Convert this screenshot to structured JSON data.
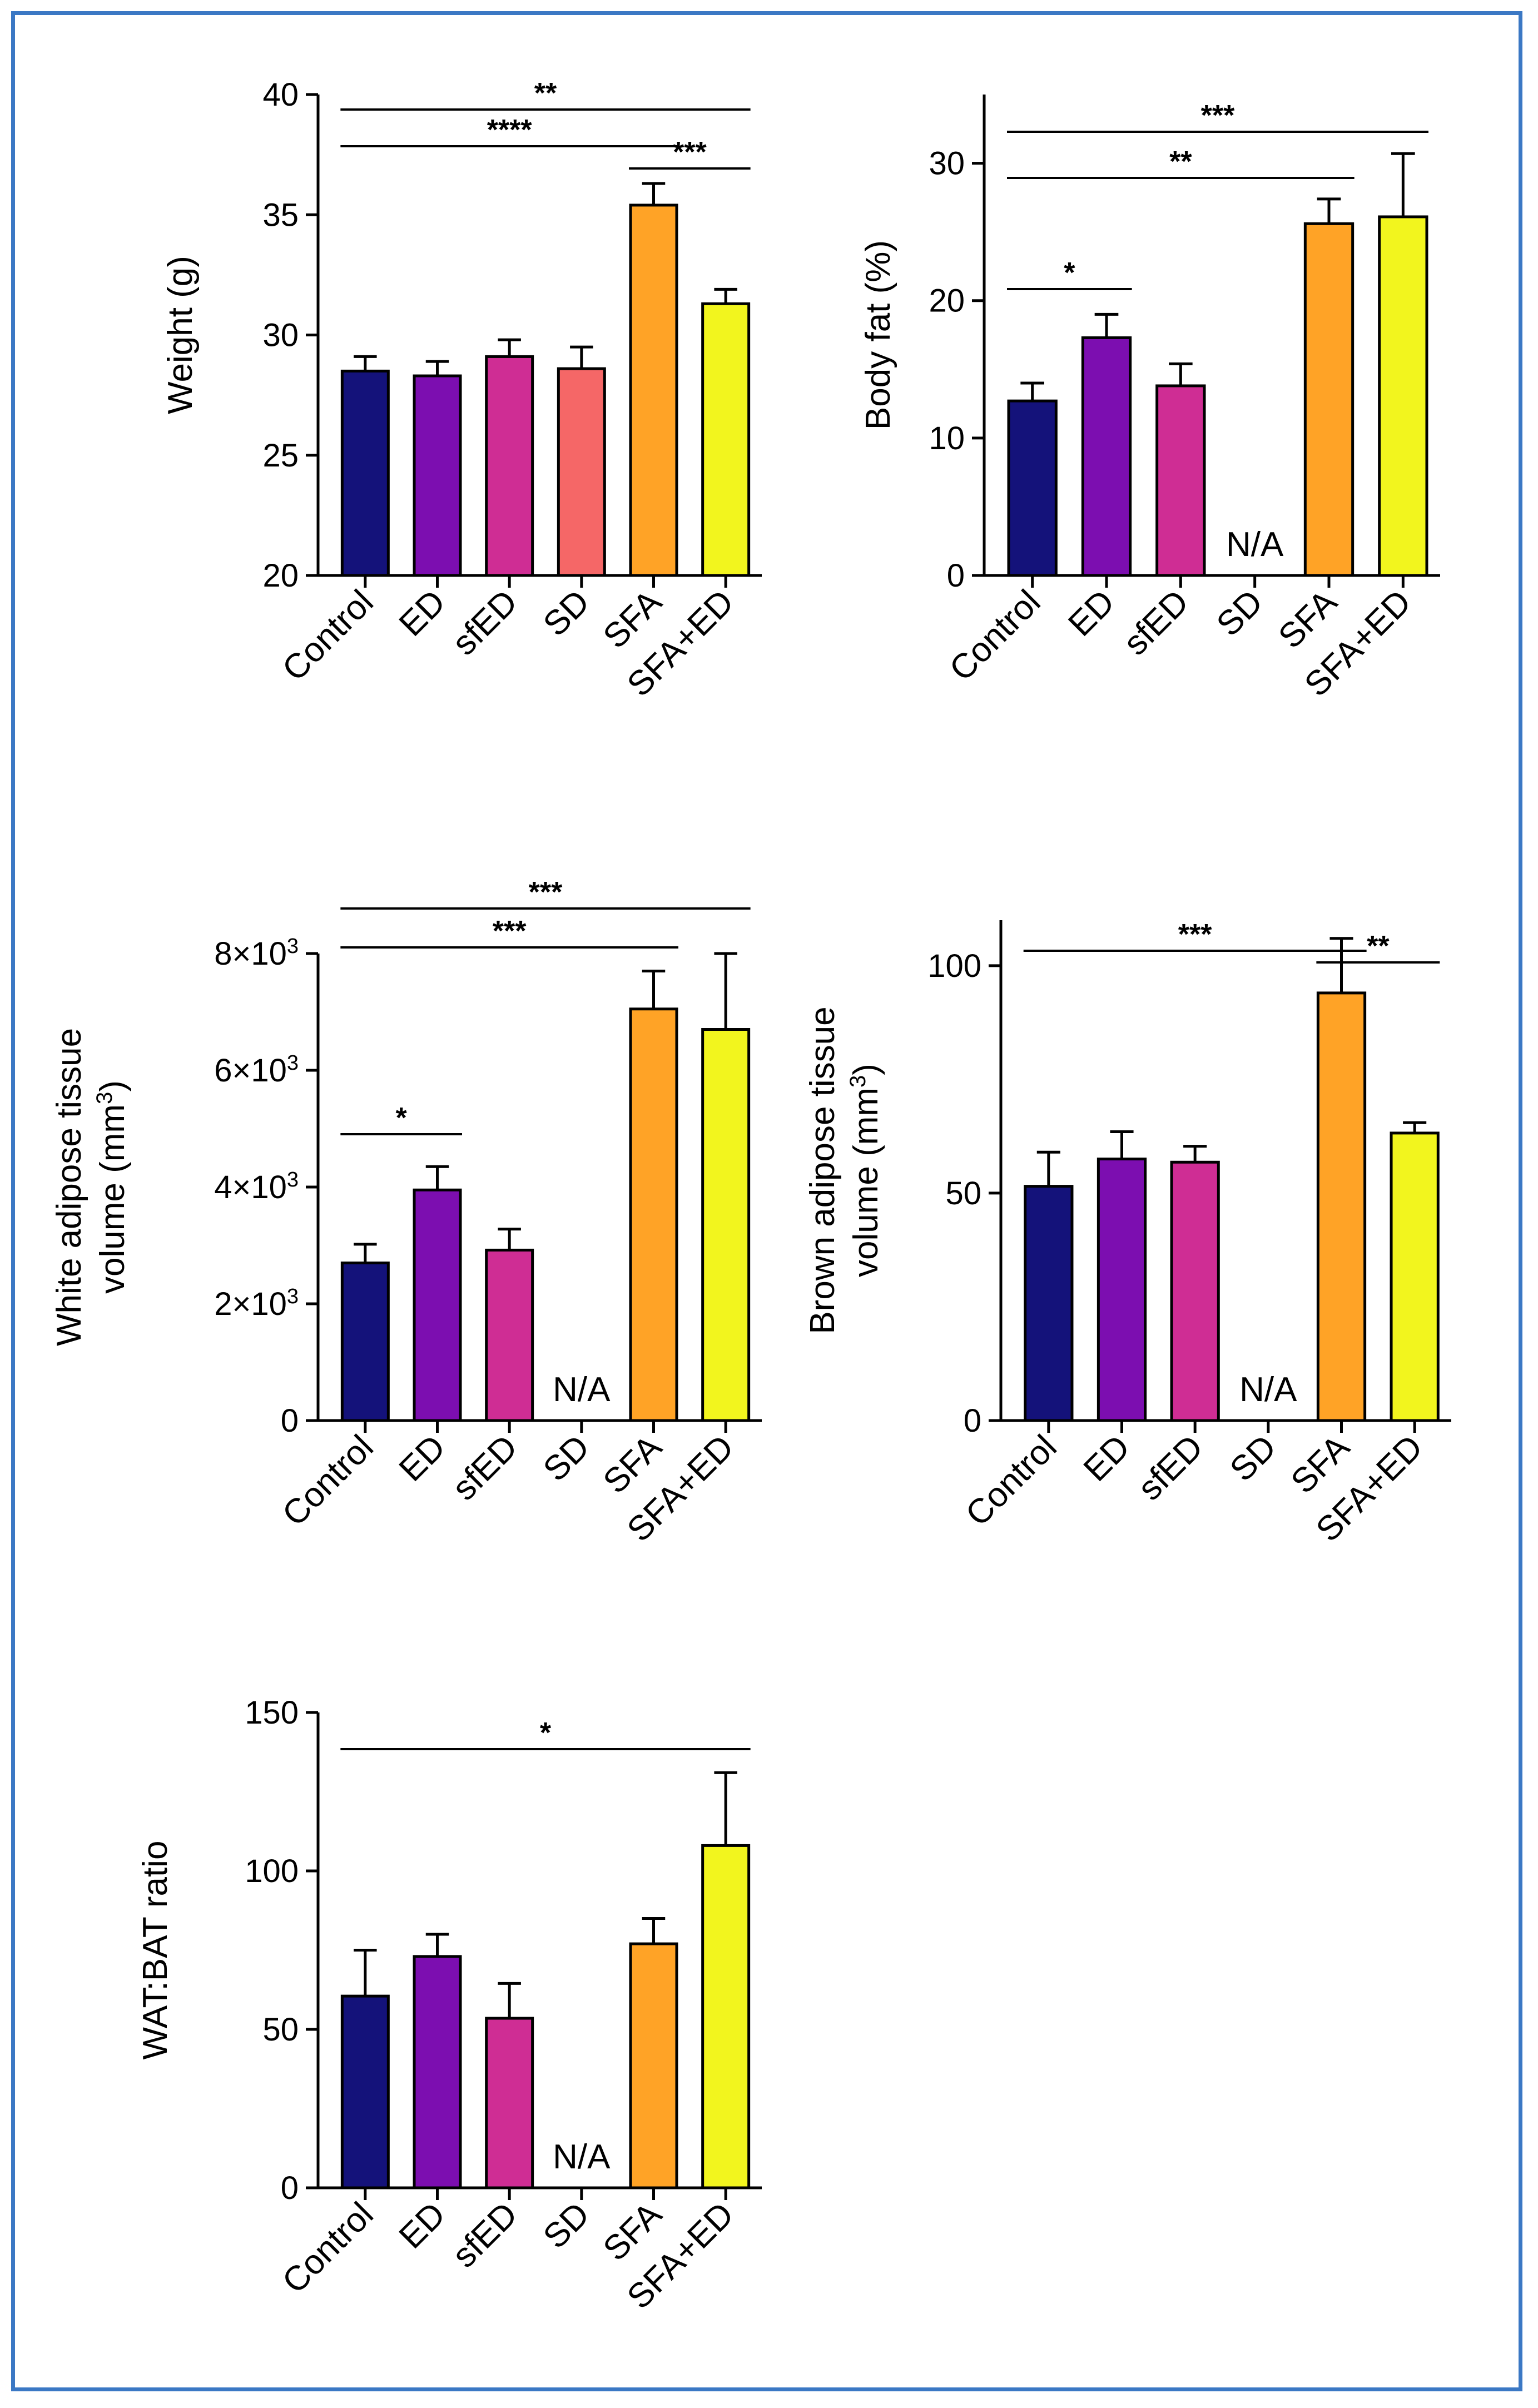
{
  "frame": {
    "border_color": "#3b78c4"
  },
  "categories": [
    "Control",
    "ED",
    "sfED",
    "SD",
    "SFA",
    "SFA+ED"
  ],
  "colors": [
    "#14127a",
    "#7c0eb0",
    "#cf2d94",
    "#f56767",
    "#ffa326",
    "#f2f51e"
  ],
  "chart_data": [
    {
      "id": "weight",
      "type": "bar",
      "ylabel": "Weight (g)",
      "ylim": [
        20,
        40
      ],
      "yticks": [
        20,
        25,
        30,
        35,
        40
      ],
      "ytick_labels": [
        "20",
        "25",
        "30",
        "35",
        "40"
      ],
      "values": [
        28.5,
        28.3,
        29.1,
        28.6,
        35.4,
        31.3
      ],
      "errors": [
        0.6,
        0.6,
        0.7,
        0.9,
        0.9,
        0.6
      ],
      "na_label": null,
      "na_index": null,
      "significance": [
        {
          "from": 0,
          "to": 5,
          "label": "**"
        },
        {
          "from": 0,
          "to": 4,
          "label": "****"
        },
        {
          "from": 4,
          "to": 5,
          "label": "***"
        }
      ]
    },
    {
      "id": "body-fat",
      "type": "bar",
      "ylabel": "Body fat (%)",
      "ylim": [
        0,
        35
      ],
      "yticks": [
        0,
        10,
        20,
        30
      ],
      "ytick_labels": [
        "0",
        "10",
        "20",
        "30"
      ],
      "values": [
        12.7,
        17.3,
        13.8,
        0,
        25.6,
        26.1
      ],
      "errors": [
        1.3,
        1.7,
        1.6,
        0,
        1.8,
        4.6
      ],
      "na_label": "N/A",
      "na_index": 3,
      "significance": [
        {
          "from": 0,
          "to": 5,
          "label": "***"
        },
        {
          "from": 0,
          "to": 4,
          "label": "**"
        },
        {
          "from": 0,
          "to": 1,
          "label": "*"
        }
      ]
    },
    {
      "id": "wat-volume",
      "type": "bar",
      "ylabel": "White adipose tissue volume (mm3)",
      "ylabel_lines": [
        "White adipose tissue",
        "volume (mm",
        "3",
        ")"
      ],
      "ylim": [
        0,
        8000
      ],
      "yticks": [
        0,
        2000,
        4000,
        6000,
        8000
      ],
      "ytick_labels": [
        "0",
        "2×10",
        "4×10",
        "6×10",
        "8×10"
      ],
      "ytick_exps": [
        "",
        "3",
        "3",
        "3",
        "3"
      ],
      "values": [
        2700,
        3950,
        2920,
        0,
        7050,
        6700
      ],
      "errors": [
        320,
        400,
        360,
        0,
        650,
        1300
      ],
      "na_label": "N/A",
      "na_index": 3,
      "significance": [
        {
          "from": 0,
          "to": 5,
          "label": "***"
        },
        {
          "from": 0,
          "to": 4,
          "label": "***"
        },
        {
          "from": 0,
          "to": 1,
          "label": "*"
        }
      ]
    },
    {
      "id": "bat-volume",
      "type": "bar",
      "ylabel": "Brown adipose tissue volume (mm3)",
      "ylabel_lines": [
        "Brown adipose tissue",
        "volume (mm",
        "3",
        ")"
      ],
      "ylim": [
        0,
        110
      ],
      "yticks": [
        0,
        50,
        100
      ],
      "ytick_labels": [
        "0",
        "50",
        "100"
      ],
      "values": [
        51.5,
        57.5,
        56.8,
        0,
        94,
        63.2
      ],
      "errors": [
        7.5,
        6.0,
        3.5,
        0,
        12,
        2.3
      ],
      "na_label": "N/A",
      "na_index": 3,
      "significance": [
        {
          "from": 0,
          "to": 4,
          "label": "***"
        },
        {
          "from": 4,
          "to": 5,
          "label": "**"
        }
      ]
    },
    {
      "id": "wat-bat-ratio",
      "type": "bar",
      "ylabel": "WAT:BAT ratio",
      "ylim": [
        0,
        150
      ],
      "yticks": [
        0,
        50,
        100,
        150
      ],
      "ytick_labels": [
        "0",
        "50",
        "100",
        "150"
      ],
      "values": [
        60.5,
        73,
        53.5,
        0,
        77,
        108
      ],
      "errors": [
        14.5,
        7,
        11,
        0,
        8,
        23
      ],
      "na_label": "N/A",
      "na_index": 3,
      "significance": [
        {
          "from": 0,
          "to": 5,
          "label": "*"
        }
      ]
    }
  ]
}
